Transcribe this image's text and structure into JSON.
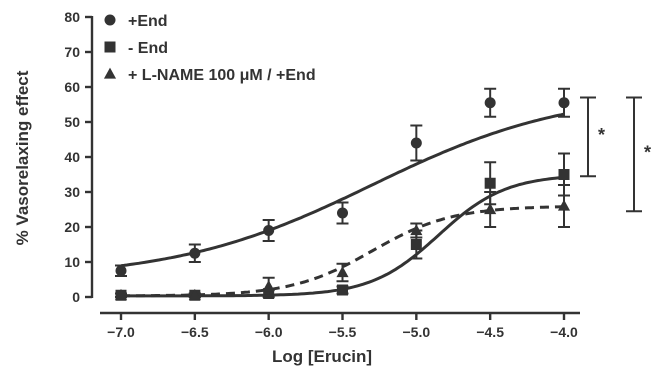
{
  "chart_data": {
    "type": "scatter",
    "title": "",
    "xlabel": "Log [Erucin]",
    "ylabel": "% Vasorelaxing effect",
    "xlim": [
      -7.2,
      -3.85
    ],
    "ylim": [
      0,
      80
    ],
    "x_ticks": [
      -7.0,
      -6.5,
      -6.0,
      -5.5,
      -5.0,
      -4.5,
      -4.0
    ],
    "x_tick_labels": [
      "-7.0",
      "-6.5",
      "-6.0",
      "-5.5",
      "-5.0",
      "-4.5",
      "-4.0"
    ],
    "y_ticks": [
      0,
      10,
      20,
      30,
      40,
      50,
      60,
      70,
      80
    ],
    "y_tick_labels": [
      "0",
      "10",
      "20",
      "30",
      "40",
      "50",
      "60",
      "70",
      "80"
    ],
    "grid": false,
    "legend_position": "top-left",
    "x": [
      -7.0,
      -6.5,
      -6.0,
      -5.5,
      -5.0,
      -4.5,
      -4.0
    ],
    "series": [
      {
        "name": "+End",
        "marker": "circle",
        "line_style": "solid",
        "values": [
          7.5,
          12.5,
          19,
          24,
          44,
          55.5,
          55.5
        ],
        "errors": [
          1.5,
          2.5,
          3,
          3,
          5,
          4,
          4
        ],
        "fit": {
          "bottom": 5,
          "top": 59,
          "logEC50": -5.3,
          "hill": 0.65
        }
      },
      {
        "name": "- End",
        "marker": "square",
        "line_style": "solid",
        "values": [
          0.5,
          0.5,
          1,
          2,
          15,
          32.5,
          35
        ],
        "errors": [
          0.5,
          0.5,
          1,
          1,
          4,
          6,
          6
        ],
        "fit": {
          "bottom": 0.3,
          "top": 35,
          "logEC50": -4.85,
          "hill": 1.9
        }
      },
      {
        "name": "+ L-NAME 100 μM / +End",
        "marker": "triangle",
        "line_style": "dashed",
        "values": [
          0.5,
          0.5,
          3,
          7,
          19,
          25,
          26
        ],
        "errors": [
          0.5,
          0.5,
          2.5,
          2.5,
          2,
          5,
          6
        ],
        "fit": {
          "bottom": 0.3,
          "top": 26,
          "logEC50": -5.3,
          "hill": 1.6
        }
      }
    ],
    "significance": [
      {
        "label": "*",
        "y_low": 34.5,
        "y_high": 57
      },
      {
        "label": "*",
        "y_low": 24.5,
        "y_high": 57
      }
    ],
    "color": "#333333"
  }
}
